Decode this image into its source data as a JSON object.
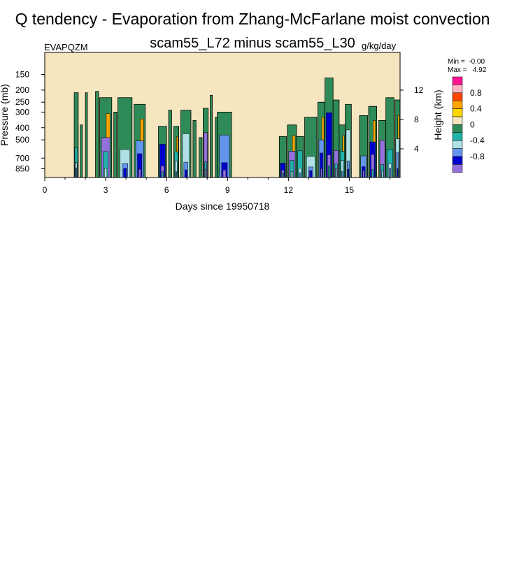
{
  "title": "Q tendency - Evaporation from Zhang-McFarlane moist convection",
  "subtitle": "scam55_L72 minus scam55_L30",
  "variable_name": "EVAPQZM",
  "units": "g/kg/day",
  "stats": {
    "min_label": "Min =  -0.00",
    "max_label": "Max =   4.92"
  },
  "colors": {
    "background": "#f5e6c0",
    "band_green": "#2e8b57",
    "band_teal": "#20b2aa",
    "band_lightcyan": "#b0e0e6",
    "band_lightblue": "#6495ed",
    "band_darkblue": "#0000cd",
    "band_purple": "#9370db",
    "band_yellow": "#ffd700",
    "band_orange": "#ffa500",
    "band_redorange": "#ff4500",
    "band_pink": "#ffb6c1",
    "band_magenta": "#ff1493"
  },
  "chart_data": {
    "type": "heatmap",
    "title": "Q tendency - Evaporation from Zhang-McFarlane moist convection",
    "xlabel": "Days since 19950718",
    "ylabel": "Pressure (mb)",
    "y2label": "Height (km)",
    "xlim": [
      0,
      17.5
    ],
    "x_ticks": [
      0,
      3,
      6,
      9,
      12,
      15
    ],
    "x_tick_labels": [
      "0",
      "3",
      "6",
      "9",
      "12",
      "15"
    ],
    "ylim": [
      1000,
      100
    ],
    "y_ticks": [
      150,
      200,
      250,
      300,
      400,
      500,
      700,
      850
    ],
    "y_tick_labels": [
      "150",
      "200",
      "250",
      "300",
      "400",
      "500",
      "700",
      "850"
    ],
    "height_ticks": [
      4,
      8,
      12
    ],
    "height_tick_labels": [
      "4",
      "8",
      "12"
    ],
    "colorbar": {
      "colors": [
        "#ff1493",
        "#ffb6c1",
        "#ff4500",
        "#ffa500",
        "#ffd700",
        "#f5e6c0",
        "#2e8b57",
        "#20b2aa",
        "#b0e0e6",
        "#6495ed",
        "#0000cd",
        "#9370db"
      ],
      "labels": [
        "0.8",
        "0.4",
        "0",
        "-0.4",
        "-0.8"
      ]
    },
    "convective_events": [
      {
        "t0": 1.45,
        "t1": 1.65,
        "ptop": 210
      },
      {
        "t0": 1.75,
        "t1": 1.85,
        "ptop": 380
      },
      {
        "t0": 2.0,
        "t1": 2.1,
        "ptop": 210
      },
      {
        "t0": 2.5,
        "t1": 2.65,
        "ptop": 205
      },
      {
        "t0": 2.7,
        "t1": 3.3,
        "ptop": 230
      },
      {
        "t0": 3.4,
        "t1": 3.55,
        "ptop": 300
      },
      {
        "t0": 3.6,
        "t1": 4.3,
        "ptop": 230
      },
      {
        "t0": 4.4,
        "t1": 4.95,
        "ptop": 260
      },
      {
        "t0": 5.6,
        "t1": 6.0,
        "ptop": 390
      },
      {
        "t0": 6.1,
        "t1": 6.25,
        "ptop": 290
      },
      {
        "t0": 6.35,
        "t1": 6.6,
        "ptop": 390
      },
      {
        "t0": 6.7,
        "t1": 7.2,
        "ptop": 290
      },
      {
        "t0": 7.3,
        "t1": 7.45,
        "ptop": 350
      },
      {
        "t0": 7.6,
        "t1": 7.75,
        "ptop": 480
      },
      {
        "t0": 7.8,
        "t1": 8.05,
        "ptop": 280
      },
      {
        "t0": 8.15,
        "t1": 8.25,
        "ptop": 220
      },
      {
        "t0": 8.4,
        "t1": 8.5,
        "ptop": 330
      },
      {
        "t0": 8.5,
        "t1": 9.2,
        "ptop": 300
      },
      {
        "t0": 11.55,
        "t1": 11.9,
        "ptop": 470
      },
      {
        "t0": 11.95,
        "t1": 12.4,
        "ptop": 380
      },
      {
        "t0": 12.4,
        "t1": 12.75,
        "ptop": 470
      },
      {
        "t0": 12.8,
        "t1": 13.4,
        "ptop": 330
      },
      {
        "t0": 13.45,
        "t1": 13.8,
        "ptop": 250
      },
      {
        "t0": 13.8,
        "t1": 14.2,
        "ptop": 160
      },
      {
        "t0": 14.2,
        "t1": 14.5,
        "ptop": 240
      },
      {
        "t0": 14.5,
        "t1": 14.8,
        "ptop": 380
      },
      {
        "t0": 14.8,
        "t1": 15.1,
        "ptop": 260
      },
      {
        "t0": 15.5,
        "t1": 15.9,
        "ptop": 320
      },
      {
        "t0": 15.95,
        "t1": 16.35,
        "ptop": 270
      },
      {
        "t0": 16.45,
        "t1": 16.8,
        "ptop": 350
      },
      {
        "t0": 16.8,
        "t1": 17.2,
        "ptop": 230
      },
      {
        "t0": 17.25,
        "t1": 17.5,
        "ptop": 240
      }
    ]
  }
}
